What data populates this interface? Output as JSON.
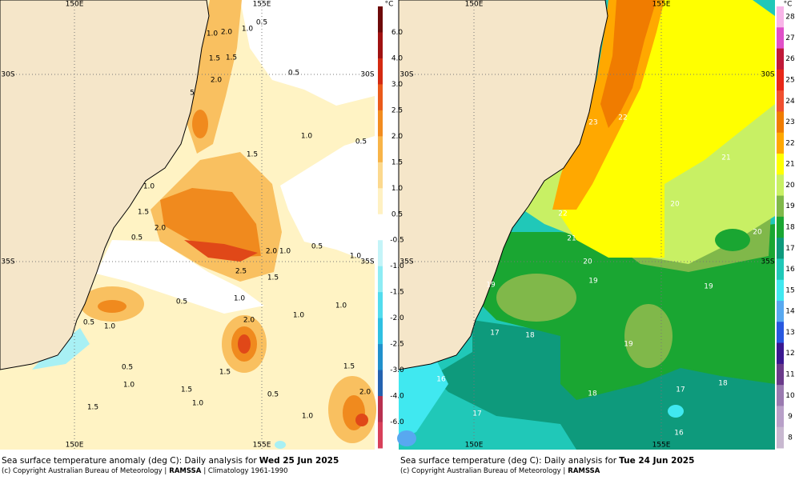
{
  "panels": [
    {
      "grid_labels": {
        "lon": [
          "150E",
          "155E"
        ],
        "lat": [
          "30S",
          "35S"
        ]
      },
      "contour_labels": [
        "1.0",
        "2.0",
        "1.0",
        "0.5",
        "1.5",
        "1.5",
        "2.0",
        "0.5",
        "5",
        "1.0",
        "0.5",
        "1.5",
        "1.0",
        "1.5",
        "2.0",
        "0.5",
        "0.5",
        "2.0",
        "1.0",
        "1.0",
        "2.5",
        "1.5",
        "1.0",
        "0.5",
        "1.0",
        "1.0",
        "0.5",
        "1.0",
        "2.0",
        "0.5",
        "1.0",
        "1.5",
        "1.5",
        "1.5",
        "1.0",
        "0.5",
        "2.0",
        "1.5",
        "1.0"
      ],
      "colorbar": {
        "unit": "°C",
        "labels": [
          "6.0",
          "4.0",
          "3.0",
          "2.5",
          "2.0",
          "1.5",
          "1.0",
          "0.5",
          "-0.5",
          "-1.0",
          "-1.5",
          "-2.0",
          "-2.5",
          "-3.0",
          "-4.0",
          "-6.0"
        ],
        "colors": [
          "#6e0a0a",
          "#a01212",
          "#d42a12",
          "#ea5a1a",
          "#f28c20",
          "#f8b448",
          "#fcd98e",
          "#fff1c2",
          "#ffffff",
          "#c4f4f8",
          "#8eecf4",
          "#52dcee",
          "#2ec0e2",
          "#2090cc",
          "#2462b0",
          "#b83050",
          "#d8405a"
        ]
      },
      "caption": {
        "prefix": "Sea surface temperature anomaly (deg C): Daily analysis for",
        "date": "Wed 25 Jun 2025"
      },
      "credit": {
        "prefix": "(c) Copyright Australian Bureau of Meteorology |",
        "product": "RAMSSA",
        "suffix": "| Climatology 1961-1990"
      }
    },
    {
      "grid_labels": {
        "lon": [
          "150E",
          "155E"
        ],
        "lat": [
          "30S",
          "35S"
        ]
      },
      "contour_labels": [
        "23",
        "22",
        "21",
        "20",
        "22",
        "21",
        "20",
        "20",
        "19",
        "19",
        "19",
        "17",
        "18",
        "19",
        "16",
        "17",
        "18",
        "18",
        "17",
        "16"
      ],
      "colorbar": {
        "unit": "°C",
        "labels": [
          "28",
          "27",
          "26",
          "25",
          "24",
          "23",
          "22",
          "21",
          "20",
          "19",
          "18",
          "17",
          "16",
          "15",
          "14",
          "13",
          "12",
          "11",
          "10",
          "9",
          "8"
        ],
        "colors": [
          "#f8b4e8",
          "#e050c8",
          "#c01838",
          "#e82818",
          "#f05030",
          "#f07c00",
          "#ffa800",
          "#ffff00",
          "#c8f064",
          "#80b84a",
          "#1aa632",
          "#0e9a7c",
          "#20c8b8",
          "#40e8f0",
          "#58a8f0",
          "#2858e0",
          "#3a1890",
          "#6a3a8a",
          "#9a7ab0",
          "#b8a0c8",
          "#c8b8d0"
        ]
      },
      "caption": {
        "prefix": "Sea surface temperature (deg C): Daily analysis for",
        "date": "Tue 24 Jun 2025"
      },
      "credit": {
        "prefix": "(c) Copyright Australian Bureau of Meteorology |",
        "product": "RAMSSA"
      }
    }
  ]
}
